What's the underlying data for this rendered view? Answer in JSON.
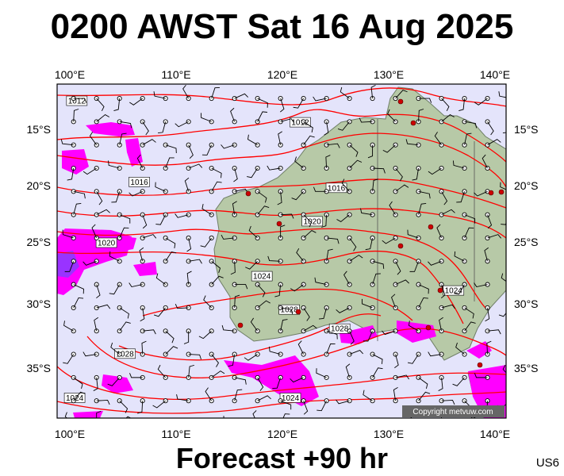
{
  "header": {
    "title": "0200 AWST Sat 16 Aug 2025"
  },
  "footer": {
    "forecast": "Forecast +90 hr",
    "code": "US6"
  },
  "map": {
    "lon_range": [
      100,
      141
    ],
    "lat_range": [
      -39,
      -11
    ],
    "lon_ticks": [
      "100°E",
      "110°E",
      "120°E",
      "130°E",
      "140°E"
    ],
    "lat_ticks": [
      "15°S",
      "20°S",
      "25°S",
      "30°S",
      "35°S"
    ],
    "copyright": "Copyright metvuw.com",
    "colors": {
      "ocean": "#e4e4fb",
      "land": "#b7c9a7",
      "isobar": "#ff0000",
      "precip": "#ff00ff",
      "heavy_precip": "#9933ff"
    },
    "isobar_labels": [
      {
        "text": "1012",
        "lon": 101.8,
        "lat": -12.4
      },
      {
        "text": "1012",
        "lon": 122.2,
        "lat": -14.2
      },
      {
        "text": "1016",
        "lon": 107.5,
        "lat": -19.2
      },
      {
        "text": "1016",
        "lon": 125.5,
        "lat": -19.7
      },
      {
        "text": "1020",
        "lon": 104.5,
        "lat": -24.3
      },
      {
        "text": "1020",
        "lon": 123.3,
        "lat": -22.5
      },
      {
        "text": "1024",
        "lon": 118.7,
        "lat": -27.1
      },
      {
        "text": "1024",
        "lon": 136.2,
        "lat": -28.3
      },
      {
        "text": "1028",
        "lon": 121.2,
        "lat": -29.9
      },
      {
        "text": "1028",
        "lon": 125.8,
        "lat": -31.5
      },
      {
        "text": "1028",
        "lon": 106.2,
        "lat": -33.6
      },
      {
        "text": "1024",
        "lon": 101.6,
        "lat": -37.3
      },
      {
        "text": "1024",
        "lon": 121.3,
        "lat": -37.3
      }
    ],
    "wind_grid": {
      "lon_start": 101.5,
      "lon_step": 2.1,
      "lat_start": -12.2,
      "lat_step": 1.95
    }
  }
}
